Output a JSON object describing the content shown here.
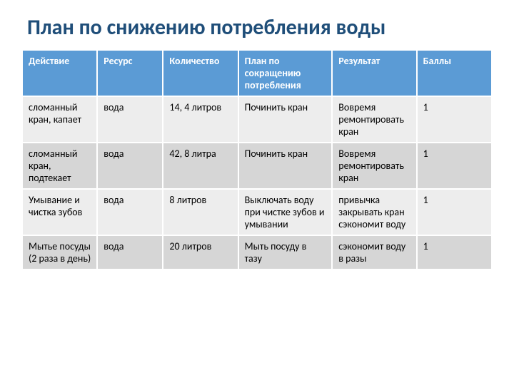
{
  "title": "План по снижению потребления воды",
  "table": {
    "columns": [
      "Действие",
      "Ресурс",
      "Количество",
      "План по сокращению потребления",
      "Результат",
      "Баллы"
    ],
    "rows": [
      [
        "сломанный кран, капает",
        "вода",
        "14, 4 литров",
        "Починить кран",
        "Вовремя ремонтировать кран",
        "1"
      ],
      [
        "сломанный кран, подтекает",
        "вода",
        "42, 8 литра",
        "Починить кран",
        "Вовремя ремонтировать кран",
        "1"
      ],
      [
        "Умывание и чистка зубов",
        "вода",
        "8 литров",
        "Выключать воду при чистке зубов и умывании",
        "привычка закрывать кран сэкономит воду",
        "1"
      ],
      [
        "Мытье посуды (2 раза в день)",
        "вода",
        "20 литров",
        "Мыть посуду в тазу",
        "сэкономит воду в разы",
        "1"
      ]
    ],
    "header_bg": "#5b9bd5",
    "header_fg": "#ffffff",
    "row_odd_bg": "#ededed",
    "row_even_bg": "#d6d6d6",
    "title_color": "#1f4e79",
    "title_fontsize": 30,
    "cell_fontsize": 14
  }
}
